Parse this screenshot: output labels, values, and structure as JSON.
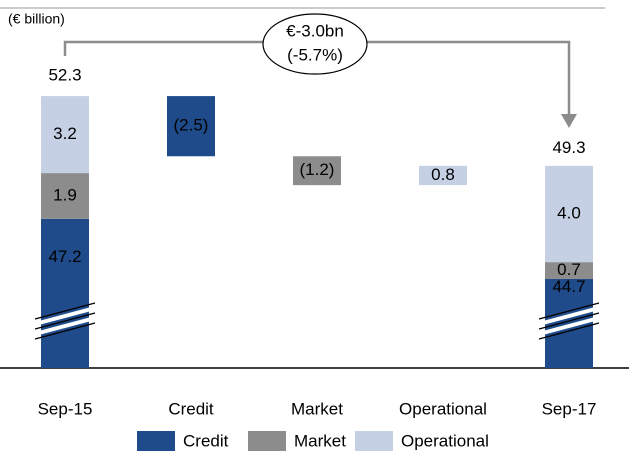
{
  "chart_data": {
    "type": "waterfall",
    "unit_label": "(€ billion)",
    "annotation": [
      "€-3.0bn",
      "(-5.7%)"
    ],
    "categories": [
      "Sep-15",
      "Credit",
      "Market",
      "Operational",
      "Sep-17"
    ],
    "totals": [
      52.3,
      null,
      null,
      null,
      49.3
    ],
    "series": [
      {
        "name": "Credit",
        "color": "#1f4b8a",
        "label_color": "#ffffff",
        "values": [
          47.2,
          -2.5,
          null,
          null,
          44.7
        ],
        "value_labels": [
          "47.2",
          "(2.5)",
          null,
          null,
          "44.7"
        ]
      },
      {
        "name": "Market",
        "color": "#8c8c8c",
        "label_color": "#000000",
        "values": [
          1.9,
          null,
          -1.2,
          null,
          0.7
        ],
        "value_labels": [
          "1.9",
          null,
          "(1.2)",
          null,
          "0.7"
        ]
      },
      {
        "name": "Operational",
        "color": "#c5d0e4",
        "label_color": "#000000",
        "values": [
          3.2,
          null,
          null,
          0.8,
          4.0
        ],
        "value_labels": [
          "3.2",
          null,
          null,
          "0.8",
          "4.0"
        ]
      }
    ],
    "ylim": [
      41,
      53.8
    ],
    "axis_break": true,
    "legend": "bottom"
  }
}
